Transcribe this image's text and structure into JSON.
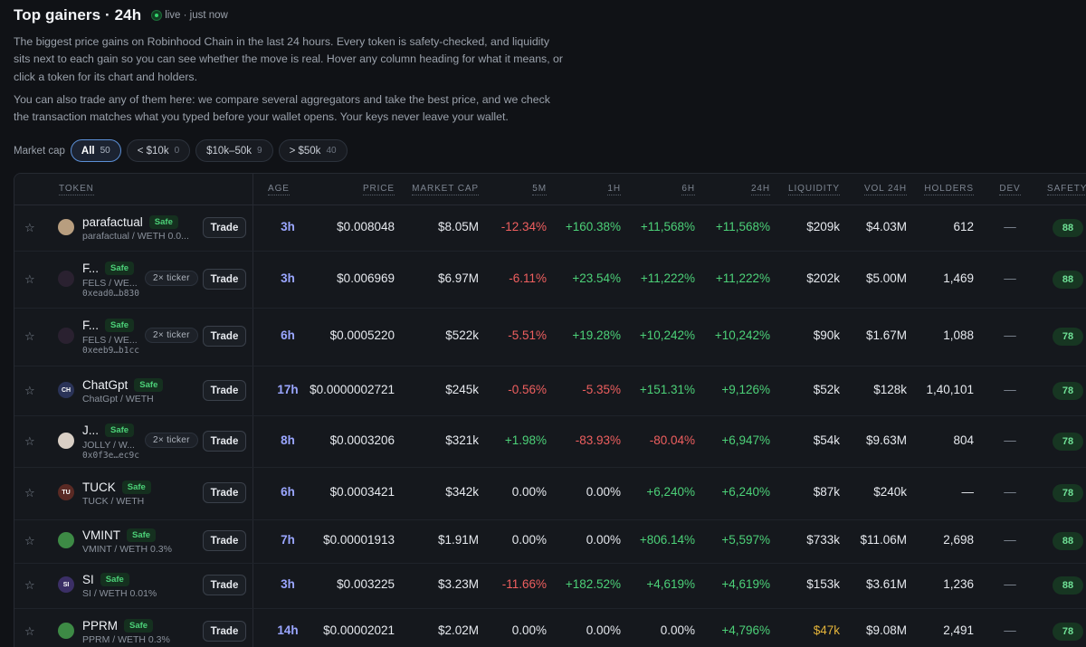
{
  "header": {
    "title": "Top gainers · 24h",
    "live_label": "live · just now",
    "desc1": "The biggest price gains on Robinhood Chain in the last 24 hours. Every token is safety-checked, and liquidity sits next to each gain so you can see whether the move is real. Hover any column heading for what it means, or click a token for its chart and holders.",
    "desc2": "You can also trade any of them here: we compare several aggregators and take the best price, and we check the transaction matches what you typed before your wallet opens. Your keys never leave your wallet."
  },
  "filters": {
    "label": "Market cap",
    "chips": [
      {
        "label": "All",
        "count": "50"
      },
      {
        "label": "< $10k",
        "count": "0"
      },
      {
        "label": "$10k–50k",
        "count": "9"
      },
      {
        "label": "> $50k",
        "count": "40"
      }
    ]
  },
  "columns": {
    "token": "TOKEN",
    "age": "AGE",
    "price": "PRICE",
    "mcap": "MARKET CAP",
    "m5": "5M",
    "h1": "1H",
    "h6": "6H",
    "h24": "24H",
    "liq": "LIQUIDITY",
    "vol": "VOL 24H",
    "holders": "HOLDERS",
    "dev": "DEV",
    "safety": "SAFETY"
  },
  "labels": {
    "safe": "Safe",
    "trade": "Trade",
    "star": "☆",
    "dev": "—"
  },
  "colors": {
    "accent": "#5b8fd6",
    "positive": "#4cd178",
    "negative": "#ef5f5f",
    "warning": "#e3b33a",
    "age": "#9aa6ff"
  },
  "rows": [
    {
      "name": "parafactual",
      "pair": "parafactual / WETH 0.0...",
      "addr": "",
      "ticker": "",
      "avatar": "",
      "avatar_color": "#b89e7f",
      "age": "3h",
      "price": "$0.008048",
      "mcap": "$8.05M",
      "m5": "-12.34%",
      "m5_c": "neg",
      "h1": "+160.38%",
      "h1_c": "pos",
      "h6": "+11,568%",
      "h6_c": "pos",
      "h24": "+11,568%",
      "h24_c": "pos",
      "liq": "$209k",
      "liq_c": "",
      "vol": "$4.03M",
      "holders": "612",
      "safety": "88"
    },
    {
      "name": "F...",
      "pair": "FELS / WE...",
      "addr": "0xead0…b830",
      "ticker": "2× ticker",
      "avatar": "",
      "avatar_color": "#2a2130",
      "age": "3h",
      "price": "$0.006969",
      "mcap": "$6.97M",
      "m5": "-6.11%",
      "m5_c": "neg",
      "h1": "+23.54%",
      "h1_c": "pos",
      "h6": "+11,222%",
      "h6_c": "pos",
      "h24": "+11,222%",
      "h24_c": "pos",
      "liq": "$202k",
      "liq_c": "",
      "vol": "$5.00M",
      "holders": "1,469",
      "safety": "88"
    },
    {
      "name": "F...",
      "pair": "FELS / WE...",
      "addr": "0xeeb9…b1cc",
      "ticker": "2× ticker",
      "avatar": "",
      "avatar_color": "#2a2130",
      "age": "6h",
      "price": "$0.0005220",
      "mcap": "$522k",
      "m5": "-5.51%",
      "m5_c": "neg",
      "h1": "+19.28%",
      "h1_c": "pos",
      "h6": "+10,242%",
      "h6_c": "pos",
      "h24": "+10,242%",
      "h24_c": "pos",
      "liq": "$90k",
      "liq_c": "",
      "vol": "$1.67M",
      "holders": "1,088",
      "safety": "78"
    },
    {
      "name": "ChatGpt",
      "pair": "ChatGpt / WETH",
      "addr": "",
      "ticker": "",
      "avatar": "CH",
      "avatar_color": "#2a3358",
      "age": "17h",
      "price": "$0.0000002721",
      "mcap": "$245k",
      "m5": "-0.56%",
      "m5_c": "neg",
      "h1": "-5.35%",
      "h1_c": "neg",
      "h6": "+151.31%",
      "h6_c": "pos",
      "h24": "+9,126%",
      "h24_c": "pos",
      "liq": "$52k",
      "liq_c": "",
      "vol": "$128k",
      "holders": "1,40,101",
      "safety": "78"
    },
    {
      "name": "J...",
      "pair": "JOLLY / W...",
      "addr": "0x0f3e…ec9c",
      "ticker": "2× ticker",
      "avatar": "",
      "avatar_color": "#d9cfc5",
      "age": "8h",
      "price": "$0.0003206",
      "mcap": "$321k",
      "m5": "+1.98%",
      "m5_c": "pos",
      "h1": "-83.93%",
      "h1_c": "neg",
      "h6": "-80.04%",
      "h6_c": "neg",
      "h24": "+6,947%",
      "h24_c": "pos",
      "liq": "$54k",
      "liq_c": "",
      "vol": "$9.63M",
      "holders": "804",
      "safety": "78"
    },
    {
      "name": "TUCK",
      "pair": "TUCK / WETH",
      "addr": "",
      "ticker": "",
      "avatar": "TU",
      "avatar_color": "#5a2a24",
      "age": "6h",
      "price": "$0.0003421",
      "mcap": "$342k",
      "m5": "0.00%",
      "m5_c": "",
      "h1": "0.00%",
      "h1_c": "",
      "h6": "+6,240%",
      "h6_c": "pos",
      "h24": "+6,240%",
      "h24_c": "pos",
      "liq": "$87k",
      "liq_c": "",
      "vol": "$240k",
      "holders": "—",
      "safety": "78"
    },
    {
      "name": "VMINT",
      "pair": "VMINT / WETH 0.3%",
      "addr": "",
      "ticker": "",
      "avatar": "",
      "avatar_color": "#3d8a45",
      "age": "7h",
      "price": "$0.00001913",
      "mcap": "$1.91M",
      "m5": "0.00%",
      "m5_c": "",
      "h1": "0.00%",
      "h1_c": "",
      "h6": "+806.14%",
      "h6_c": "pos",
      "h24": "+5,597%",
      "h24_c": "pos",
      "liq": "$733k",
      "liq_c": "",
      "vol": "$11.06M",
      "holders": "2,698",
      "safety": "88"
    },
    {
      "name": "SI",
      "pair": "SI / WETH 0.01%",
      "addr": "",
      "ticker": "",
      "avatar": "SI",
      "avatar_color": "#3b2f66",
      "age": "3h",
      "price": "$0.003225",
      "mcap": "$3.23M",
      "m5": "-11.66%",
      "m5_c": "neg",
      "h1": "+182.52%",
      "h1_c": "pos",
      "h6": "+4,619%",
      "h6_c": "pos",
      "h24": "+4,619%",
      "h24_c": "pos",
      "liq": "$153k",
      "liq_c": "",
      "vol": "$3.61M",
      "holders": "1,236",
      "safety": "88"
    },
    {
      "name": "PPRM",
      "pair": "PPRM / WETH 0.3%",
      "addr": "",
      "ticker": "",
      "avatar": "",
      "avatar_color": "#3d8a45",
      "age": "14h",
      "price": "$0.00002021",
      "mcap": "$2.02M",
      "m5": "0.00%",
      "m5_c": "",
      "h1": "0.00%",
      "h1_c": "",
      "h6": "0.00%",
      "h6_c": "",
      "h24": "+4,796%",
      "h24_c": "pos",
      "liq": "$47k",
      "liq_c": "warn",
      "vol": "$9.08M",
      "holders": "2,491",
      "safety": "78"
    }
  ]
}
